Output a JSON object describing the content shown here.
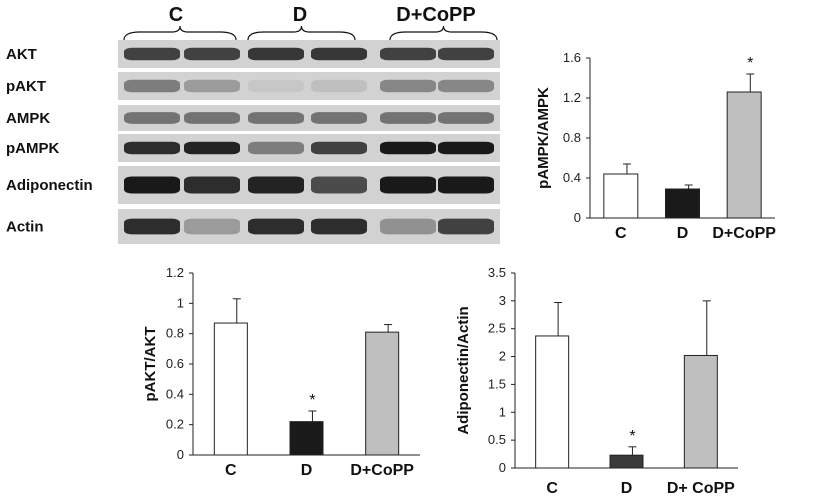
{
  "blot": {
    "groups": [
      "C",
      "D",
      "D+CoPP"
    ],
    "rows": [
      {
        "label": "AKT",
        "intensity": [
          0.75,
          0.75,
          0.8,
          0.8,
          0.75,
          0.75
        ]
      },
      {
        "label": "pAKT",
        "intensity": [
          0.45,
          0.3,
          0.08,
          0.12,
          0.4,
          0.4
        ]
      },
      {
        "label": "AMPK",
        "intensity": [
          0.5,
          0.5,
          0.5,
          0.5,
          0.5,
          0.5
        ]
      },
      {
        "label": "pAMPK",
        "intensity": [
          0.85,
          0.9,
          0.45,
          0.75,
          0.95,
          0.95
        ]
      },
      {
        "label": "Adiponectin",
        "intensity": [
          0.95,
          0.85,
          0.9,
          0.7,
          0.95,
          0.95
        ]
      },
      {
        "label": "Actin",
        "intensity": [
          0.85,
          0.3,
          0.85,
          0.85,
          0.35,
          0.75
        ]
      }
    ]
  },
  "colors": {
    "C": "#ffffff",
    "D": "#1a1a1a",
    "D_adiponectin": "#3a3a3a",
    "D+CoPP": "#bfbfbf",
    "outline": "#222222"
  },
  "chart_data": [
    {
      "type": "bar",
      "ylabel": "pAMPK/AMPK",
      "categories": [
        "C",
        "D",
        "D+CoPP"
      ],
      "values": [
        0.44,
        0.29,
        1.26
      ],
      "errors": [
        0.1,
        0.04,
        0.18
      ],
      "significance": [
        "",
        "",
        "*"
      ],
      "ylim": [
        0,
        1.6
      ],
      "yticks": [
        "0",
        "0.4",
        "0.8",
        "1.2",
        "1.6"
      ],
      "grid": false
    },
    {
      "type": "bar",
      "ylabel": "pAKT/AKT",
      "categories": [
        "C",
        "D",
        "D+CoPP"
      ],
      "values": [
        0.87,
        0.22,
        0.81
      ],
      "errors": [
        0.16,
        0.07,
        0.05
      ],
      "significance": [
        "",
        "*",
        ""
      ],
      "ylim": [
        0,
        1.2
      ],
      "yticks": [
        "0",
        "0.2",
        "0.4",
        "0.6",
        "0.8",
        "1",
        "1.2"
      ],
      "grid": false
    },
    {
      "type": "bar",
      "ylabel": "Adiponectin/Actin",
      "categories": [
        "C",
        "D",
        "D+ CoPP"
      ],
      "values": [
        2.37,
        0.23,
        2.02
      ],
      "errors": [
        0.6,
        0.15,
        0.98
      ],
      "significance": [
        "",
        "*",
        ""
      ],
      "ylim": [
        0,
        3.5
      ],
      "yticks": [
        "0",
        "0.5",
        "1",
        "1.5",
        "2",
        "2.5",
        "3",
        "3.5"
      ],
      "grid": false
    }
  ]
}
